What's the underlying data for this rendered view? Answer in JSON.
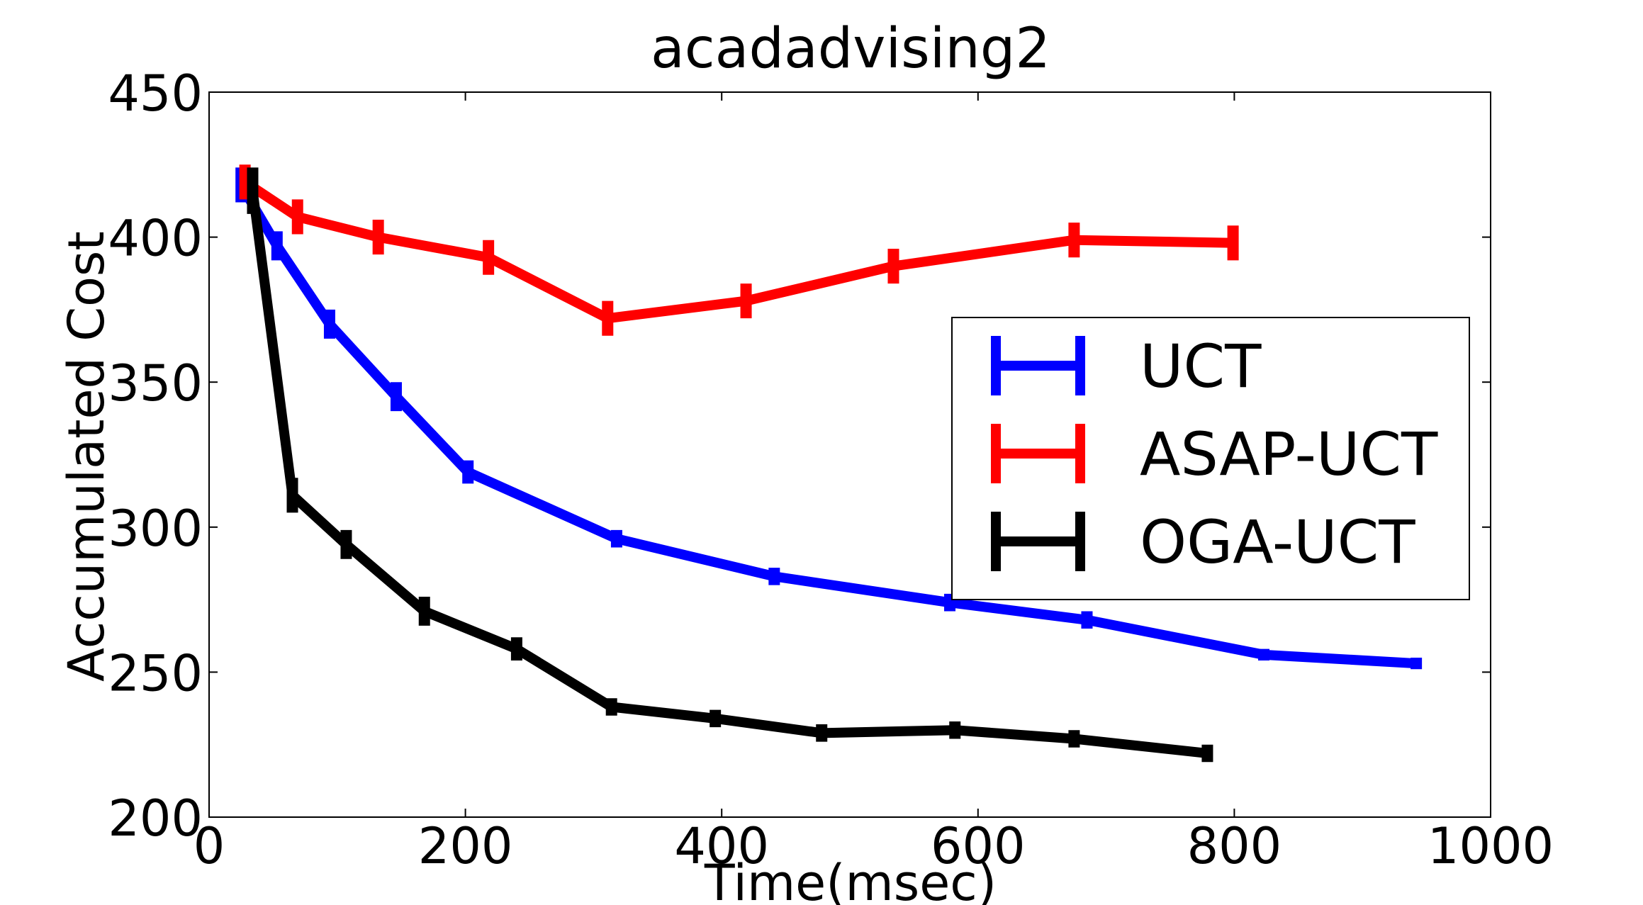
{
  "chart_data": {
    "type": "line",
    "title": "acadadvising2",
    "xlabel": "Time(msec)",
    "ylabel": "Accumulated Cost",
    "xlim": [
      0,
      1000
    ],
    "ylim": [
      200,
      450
    ],
    "xticks": [
      0,
      200,
      400,
      600,
      800,
      1000
    ],
    "yticks": [
      200,
      250,
      300,
      350,
      400,
      450
    ],
    "xtick_labels": [
      "0",
      "200",
      "400",
      "600",
      "800",
      "1000"
    ],
    "ytick_labels": [
      "200",
      "250",
      "300",
      "350",
      "400",
      "450"
    ],
    "grid": false,
    "legend_position": "center-right",
    "series": [
      {
        "name": "UCT",
        "color": "#0000ff",
        "x": [
          25,
          53,
          94,
          146,
          202,
          318,
          441,
          578,
          685,
          823,
          942
        ],
        "y": [
          418,
          397,
          370,
          345,
          319,
          296,
          283,
          274,
          268,
          256,
          253
        ],
        "err": [
          6,
          5,
          5,
          5,
          4,
          3,
          3,
          3,
          3,
          2,
          2
        ]
      },
      {
        "name": "ASAP-UCT",
        "color": "#ff0000",
        "x": [
          28,
          69,
          132,
          218,
          311,
          419,
          534,
          675,
          799
        ],
        "y": [
          419,
          407,
          400,
          393,
          372,
          378,
          390,
          399,
          398
        ],
        "err": [
          6,
          6,
          6,
          6,
          6,
          6,
          6,
          6,
          6
        ]
      },
      {
        "name": "OGA-UCT",
        "color": "#000000",
        "x": [
          34,
          65,
          107,
          168,
          240,
          314,
          395,
          478,
          582,
          675,
          779
        ],
        "y": [
          416,
          311,
          294,
          271,
          258,
          238,
          234,
          229,
          230,
          227,
          222
        ],
        "err": [
          8,
          6,
          5,
          5,
          4,
          3,
          3,
          3,
          3,
          3,
          3
        ]
      }
    ]
  }
}
